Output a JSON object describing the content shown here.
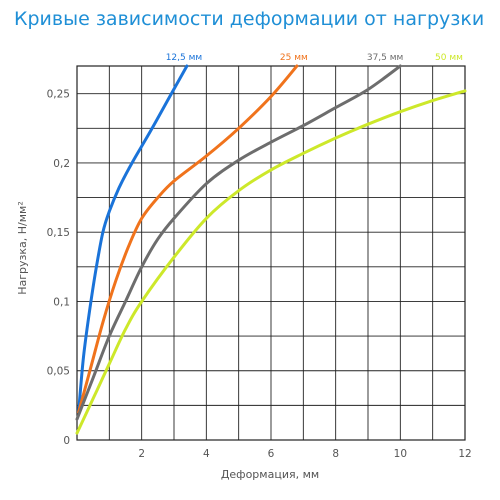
{
  "chart_data": {
    "type": "line",
    "title": "Кривые зависимости деформации от нагрузки",
    "xlabel": "Деформация, мм",
    "ylabel": "Нагрузка, Н/мм²",
    "xlim": [
      0,
      12
    ],
    "ylim": [
      0,
      0.27
    ],
    "x_ticks": [
      2,
      4,
      6,
      8,
      10,
      12
    ],
    "x_tick_labels": [
      "2",
      "4",
      "6",
      "8",
      "10",
      "12"
    ],
    "y_ticks": [
      0,
      0.05,
      0.1,
      0.15,
      0.2,
      0.25
    ],
    "y_tick_labels": [
      "0",
      "0,05",
      "0,1",
      "0,15",
      "0,2",
      "0,25"
    ],
    "grid": true,
    "legend": "labels at top of each curve",
    "series": [
      {
        "name": "12,5 мм",
        "color": "#1a73d9",
        "x": [
          0.05,
          0.2,
          0.4,
          0.6,
          0.8,
          1.0,
          1.3,
          1.7,
          2.2,
          2.8,
          3.4
        ],
        "y": [
          0.02,
          0.06,
          0.095,
          0.125,
          0.15,
          0.165,
          0.182,
          0.2,
          0.22,
          0.245,
          0.27
        ]
      },
      {
        "name": "25 мм",
        "color": "#f0731c",
        "x": [
          0.05,
          0.4,
          0.8,
          1.2,
          1.6,
          2.0,
          2.5,
          3.0,
          4.0,
          5.0,
          6.0,
          6.8
        ],
        "y": [
          0.02,
          0.05,
          0.085,
          0.115,
          0.14,
          0.16,
          0.175,
          0.187,
          0.205,
          0.225,
          0.248,
          0.27
        ]
      },
      {
        "name": "37,5 мм",
        "color": "#6d6d6d",
        "x": [
          0.0,
          0.5,
          1.0,
          1.5,
          2.0,
          2.5,
          3.0,
          4.0,
          5.0,
          6.0,
          7.0,
          8.0,
          9.0,
          10.0
        ],
        "y": [
          0.015,
          0.045,
          0.075,
          0.1,
          0.125,
          0.145,
          0.16,
          0.185,
          0.202,
          0.215,
          0.227,
          0.24,
          0.253,
          0.27
        ]
      },
      {
        "name": "50 мм",
        "color": "#cde82a",
        "x": [
          0.0,
          0.5,
          1.0,
          1.5,
          2.0,
          3.0,
          4.0,
          5.0,
          6.0,
          7.0,
          8.0,
          9.0,
          10.0,
          11.0,
          12.0
        ],
        "y": [
          0.005,
          0.03,
          0.055,
          0.08,
          0.1,
          0.132,
          0.16,
          0.18,
          0.195,
          0.207,
          0.218,
          0.228,
          0.237,
          0.245,
          0.252
        ]
      }
    ]
  }
}
